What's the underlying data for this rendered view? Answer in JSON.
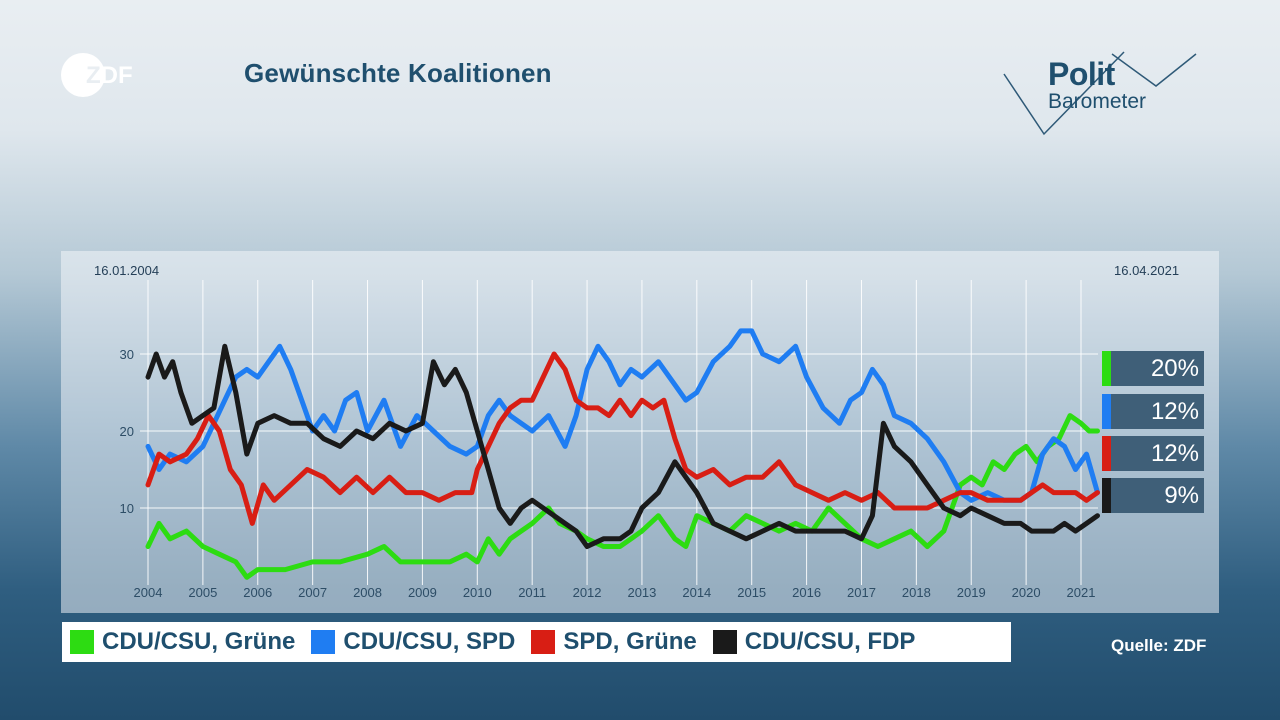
{
  "header": {
    "broadcaster_logo": "zdf-logo",
    "title": "Gewünschte Koalitionen",
    "brand": {
      "line1": "Polit",
      "line2": "Barometer"
    }
  },
  "colors": {
    "cdu_gruene": "#2ddc12",
    "cdu_spd": "#1f7df2",
    "spd_gruene": "#d81e14",
    "cdu_fdp": "#1a1a1a",
    "title": "#1f4f6e",
    "value_box": "#3f5f78"
  },
  "chart_data": {
    "type": "line",
    "date_start": "16.01.2004",
    "date_end": "16.04.2021",
    "x_ticks": [
      "2004",
      "2005",
      "2006",
      "2007",
      "2008",
      "2009",
      "2010",
      "2011",
      "2012",
      "2013",
      "2014",
      "2015",
      "2016",
      "2017",
      "2018",
      "2019",
      "2020",
      "2021"
    ],
    "y_ticks": [
      "30",
      "20",
      "10"
    ],
    "ylim": [
      0,
      36
    ],
    "grid": true,
    "legend_position": "bottom",
    "x_unit": "year",
    "series": [
      {
        "name": "CDU/CSU, Grüne",
        "color": "#2ddc12",
        "latest": "20%",
        "points": [
          [
            2004.0,
            5
          ],
          [
            2004.2,
            8
          ],
          [
            2004.4,
            6
          ],
          [
            2004.7,
            7
          ],
          [
            2005.0,
            5
          ],
          [
            2005.3,
            4
          ],
          [
            2005.6,
            3
          ],
          [
            2005.8,
            1
          ],
          [
            2006.0,
            2
          ],
          [
            2006.5,
            2
          ],
          [
            2007.0,
            3
          ],
          [
            2007.5,
            3
          ],
          [
            2008.0,
            4
          ],
          [
            2008.3,
            5
          ],
          [
            2008.6,
            3
          ],
          [
            2009.0,
            3
          ],
          [
            2009.5,
            3
          ],
          [
            2009.8,
            4
          ],
          [
            2010.0,
            3
          ],
          [
            2010.2,
            6
          ],
          [
            2010.4,
            4
          ],
          [
            2010.6,
            6
          ],
          [
            2010.8,
            7
          ],
          [
            2011.0,
            8
          ],
          [
            2011.3,
            10
          ],
          [
            2011.5,
            8
          ],
          [
            2011.8,
            7
          ],
          [
            2012.0,
            6
          ],
          [
            2012.3,
            5
          ],
          [
            2012.6,
            5
          ],
          [
            2012.8,
            6
          ],
          [
            2013.0,
            7
          ],
          [
            2013.3,
            9
          ],
          [
            2013.6,
            6
          ],
          [
            2013.8,
            5
          ],
          [
            2014.0,
            9
          ],
          [
            2014.3,
            8
          ],
          [
            2014.6,
            7
          ],
          [
            2014.9,
            9
          ],
          [
            2015.2,
            8
          ],
          [
            2015.5,
            7
          ],
          [
            2015.8,
            8
          ],
          [
            2016.1,
            7
          ],
          [
            2016.4,
            10
          ],
          [
            2016.7,
            8
          ],
          [
            2017.0,
            6
          ],
          [
            2017.3,
            5
          ],
          [
            2017.6,
            6
          ],
          [
            2017.9,
            7
          ],
          [
            2018.2,
            5
          ],
          [
            2018.5,
            7
          ],
          [
            2018.8,
            13
          ],
          [
            2019.0,
            14
          ],
          [
            2019.2,
            13
          ],
          [
            2019.4,
            16
          ],
          [
            2019.6,
            15
          ],
          [
            2019.8,
            17
          ],
          [
            2020.0,
            18
          ],
          [
            2020.2,
            16
          ],
          [
            2020.4,
            18
          ],
          [
            2020.6,
            19
          ],
          [
            2020.8,
            22
          ],
          [
            2021.0,
            21
          ],
          [
            2021.15,
            20
          ],
          [
            2021.3,
            20
          ]
        ]
      },
      {
        "name": "CDU/CSU, SPD",
        "color": "#1f7df2",
        "latest": "12%",
        "points": [
          [
            2004.0,
            18
          ],
          [
            2004.2,
            15
          ],
          [
            2004.4,
            17
          ],
          [
            2004.7,
            16
          ],
          [
            2005.0,
            18
          ],
          [
            2005.2,
            21
          ],
          [
            2005.4,
            24
          ],
          [
            2005.6,
            27
          ],
          [
            2005.8,
            28
          ],
          [
            2006.0,
            27
          ],
          [
            2006.2,
            29
          ],
          [
            2006.4,
            31
          ],
          [
            2006.6,
            28
          ],
          [
            2006.8,
            24
          ],
          [
            2007.0,
            20
          ],
          [
            2007.2,
            22
          ],
          [
            2007.4,
            20
          ],
          [
            2007.6,
            24
          ],
          [
            2007.8,
            25
          ],
          [
            2008.0,
            20
          ],
          [
            2008.3,
            24
          ],
          [
            2008.6,
            18
          ],
          [
            2008.9,
            22
          ],
          [
            2009.2,
            20
          ],
          [
            2009.5,
            18
          ],
          [
            2009.8,
            17
          ],
          [
            2010.0,
            18
          ],
          [
            2010.2,
            22
          ],
          [
            2010.4,
            24
          ],
          [
            2010.6,
            22
          ],
          [
            2010.8,
            21
          ],
          [
            2011.0,
            20
          ],
          [
            2011.3,
            22
          ],
          [
            2011.6,
            18
          ],
          [
            2011.8,
            22
          ],
          [
            2012.0,
            28
          ],
          [
            2012.2,
            31
          ],
          [
            2012.4,
            29
          ],
          [
            2012.6,
            26
          ],
          [
            2012.8,
            28
          ],
          [
            2013.0,
            27
          ],
          [
            2013.3,
            29
          ],
          [
            2013.6,
            26
          ],
          [
            2013.8,
            24
          ],
          [
            2014.0,
            25
          ],
          [
            2014.3,
            29
          ],
          [
            2014.6,
            31
          ],
          [
            2014.8,
            33
          ],
          [
            2015.0,
            33
          ],
          [
            2015.2,
            30
          ],
          [
            2015.5,
            29
          ],
          [
            2015.8,
            31
          ],
          [
            2016.0,
            27
          ],
          [
            2016.3,
            23
          ],
          [
            2016.6,
            21
          ],
          [
            2016.8,
            24
          ],
          [
            2017.0,
            25
          ],
          [
            2017.2,
            28
          ],
          [
            2017.4,
            26
          ],
          [
            2017.6,
            22
          ],
          [
            2017.9,
            21
          ],
          [
            2018.2,
            19
          ],
          [
            2018.5,
            16
          ],
          [
            2018.8,
            12
          ],
          [
            2019.0,
            11
          ],
          [
            2019.3,
            12
          ],
          [
            2019.6,
            11
          ],
          [
            2019.9,
            11
          ],
          [
            2020.1,
            12
          ],
          [
            2020.3,
            17
          ],
          [
            2020.5,
            19
          ],
          [
            2020.7,
            18
          ],
          [
            2020.9,
            15
          ],
          [
            2021.1,
            17
          ],
          [
            2021.3,
            12
          ]
        ]
      },
      {
        "name": "SPD, Grüne",
        "color": "#d81e14",
        "latest": "12%",
        "points": [
          [
            2004.0,
            13
          ],
          [
            2004.2,
            17
          ],
          [
            2004.4,
            16
          ],
          [
            2004.7,
            17
          ],
          [
            2004.9,
            19
          ],
          [
            2005.1,
            22
          ],
          [
            2005.3,
            20
          ],
          [
            2005.5,
            15
          ],
          [
            2005.7,
            13
          ],
          [
            2005.9,
            8
          ],
          [
            2006.1,
            13
          ],
          [
            2006.3,
            11
          ],
          [
            2006.6,
            13
          ],
          [
            2006.9,
            15
          ],
          [
            2007.2,
            14
          ],
          [
            2007.5,
            12
          ],
          [
            2007.8,
            14
          ],
          [
            2008.1,
            12
          ],
          [
            2008.4,
            14
          ],
          [
            2008.7,
            12
          ],
          [
            2009.0,
            12
          ],
          [
            2009.3,
            11
          ],
          [
            2009.6,
            12
          ],
          [
            2009.9,
            12
          ],
          [
            2010.0,
            15
          ],
          [
            2010.2,
            18
          ],
          [
            2010.4,
            21
          ],
          [
            2010.6,
            23
          ],
          [
            2010.8,
            24
          ],
          [
            2011.0,
            24
          ],
          [
            2011.2,
            27
          ],
          [
            2011.4,
            30
          ],
          [
            2011.6,
            28
          ],
          [
            2011.8,
            24
          ],
          [
            2012.0,
            23
          ],
          [
            2012.2,
            23
          ],
          [
            2012.4,
            22
          ],
          [
            2012.6,
            24
          ],
          [
            2012.8,
            22
          ],
          [
            2013.0,
            24
          ],
          [
            2013.2,
            23
          ],
          [
            2013.4,
            24
          ],
          [
            2013.6,
            19
          ],
          [
            2013.8,
            15
          ],
          [
            2014.0,
            14
          ],
          [
            2014.3,
            15
          ],
          [
            2014.6,
            13
          ],
          [
            2014.9,
            14
          ],
          [
            2015.2,
            14
          ],
          [
            2015.5,
            16
          ],
          [
            2015.8,
            13
          ],
          [
            2016.1,
            12
          ],
          [
            2016.4,
            11
          ],
          [
            2016.7,
            12
          ],
          [
            2017.0,
            11
          ],
          [
            2017.3,
            12
          ],
          [
            2017.6,
            10
          ],
          [
            2017.9,
            10
          ],
          [
            2018.2,
            10
          ],
          [
            2018.5,
            11
          ],
          [
            2018.8,
            12
          ],
          [
            2019.0,
            12
          ],
          [
            2019.3,
            11
          ],
          [
            2019.6,
            11
          ],
          [
            2019.9,
            11
          ],
          [
            2020.1,
            12
          ],
          [
            2020.3,
            13
          ],
          [
            2020.5,
            12
          ],
          [
            2020.7,
            12
          ],
          [
            2020.9,
            12
          ],
          [
            2021.1,
            11
          ],
          [
            2021.3,
            12
          ]
        ]
      },
      {
        "name": "CDU/CSU, FDP",
        "color": "#1a1a1a",
        "latest": "9%",
        "points": [
          [
            2004.0,
            27
          ],
          [
            2004.15,
            30
          ],
          [
            2004.3,
            27
          ],
          [
            2004.45,
            29
          ],
          [
            2004.6,
            25
          ],
          [
            2004.8,
            21
          ],
          [
            2005.0,
            22
          ],
          [
            2005.2,
            23
          ],
          [
            2005.4,
            31
          ],
          [
            2005.6,
            25
          ],
          [
            2005.8,
            17
          ],
          [
            2006.0,
            21
          ],
          [
            2006.3,
            22
          ],
          [
            2006.6,
            21
          ],
          [
            2006.9,
            21
          ],
          [
            2007.2,
            19
          ],
          [
            2007.5,
            18
          ],
          [
            2007.8,
            20
          ],
          [
            2008.1,
            19
          ],
          [
            2008.4,
            21
          ],
          [
            2008.7,
            20
          ],
          [
            2009.0,
            21
          ],
          [
            2009.2,
            29
          ],
          [
            2009.4,
            26
          ],
          [
            2009.6,
            28
          ],
          [
            2009.8,
            25
          ],
          [
            2010.0,
            20
          ],
          [
            2010.2,
            15
          ],
          [
            2010.4,
            10
          ],
          [
            2010.6,
            8
          ],
          [
            2010.8,
            10
          ],
          [
            2011.0,
            11
          ],
          [
            2011.2,
            10
          ],
          [
            2011.4,
            9
          ],
          [
            2011.6,
            8
          ],
          [
            2011.8,
            7
          ],
          [
            2012.0,
            5
          ],
          [
            2012.3,
            6
          ],
          [
            2012.6,
            6
          ],
          [
            2012.8,
            7
          ],
          [
            2013.0,
            10
          ],
          [
            2013.3,
            12
          ],
          [
            2013.6,
            16
          ],
          [
            2013.8,
            14
          ],
          [
            2014.0,
            12
          ],
          [
            2014.3,
            8
          ],
          [
            2014.6,
            7
          ],
          [
            2014.9,
            6
          ],
          [
            2015.2,
            7
          ],
          [
            2015.5,
            8
          ],
          [
            2015.8,
            7
          ],
          [
            2016.1,
            7
          ],
          [
            2016.4,
            7
          ],
          [
            2016.7,
            7
          ],
          [
            2017.0,
            6
          ],
          [
            2017.2,
            9
          ],
          [
            2017.4,
            21
          ],
          [
            2017.6,
            18
          ],
          [
            2017.9,
            16
          ],
          [
            2018.2,
            13
          ],
          [
            2018.5,
            10
          ],
          [
            2018.8,
            9
          ],
          [
            2019.0,
            10
          ],
          [
            2019.3,
            9
          ],
          [
            2019.6,
            8
          ],
          [
            2019.9,
            8
          ],
          [
            2020.1,
            7
          ],
          [
            2020.3,
            7
          ],
          [
            2020.5,
            7
          ],
          [
            2020.7,
            8
          ],
          [
            2020.9,
            7
          ],
          [
            2021.1,
            8
          ],
          [
            2021.3,
            9
          ]
        ]
      }
    ]
  },
  "source": "Quelle: ZDF"
}
